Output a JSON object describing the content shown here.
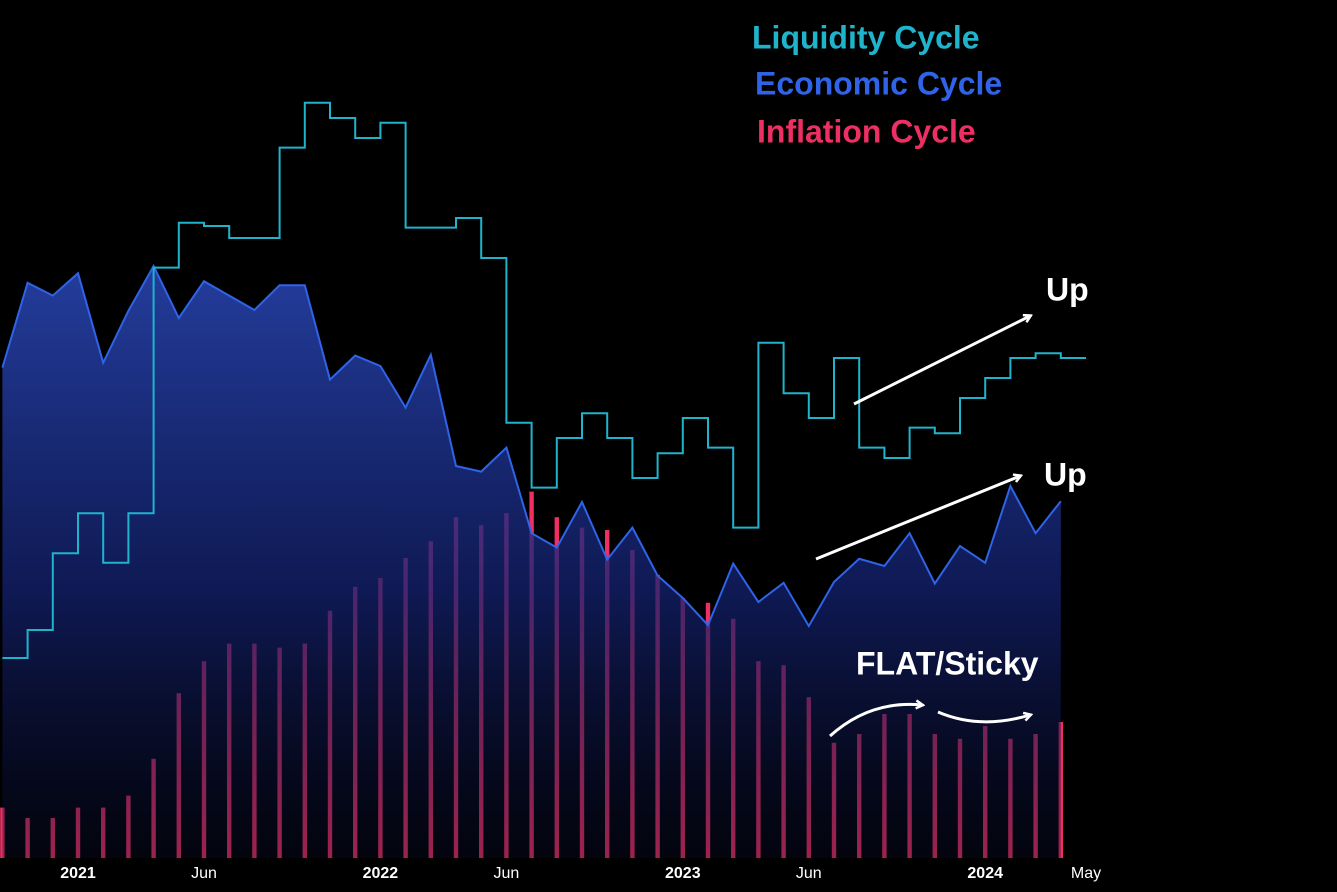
{
  "chart_data": {
    "type": "combo",
    "x": [
      "2020-10",
      "2020-11",
      "2020-12",
      "2021-01",
      "2021-02",
      "2021-03",
      "2021-04",
      "2021-05",
      "2021-06",
      "2021-07",
      "2021-08",
      "2021-09",
      "2021-10",
      "2021-11",
      "2021-12",
      "2022-01",
      "2022-02",
      "2022-03",
      "2022-04",
      "2022-05",
      "2022-06",
      "2022-07",
      "2022-08",
      "2022-09",
      "2022-10",
      "2022-11",
      "2022-12",
      "2023-01",
      "2023-02",
      "2023-03",
      "2023-04",
      "2023-05",
      "2023-06",
      "2023-07",
      "2023-08",
      "2023-09",
      "2023-10",
      "2023-11",
      "2023-12",
      "2024-01",
      "2024-02",
      "2024-03",
      "2024-04"
    ],
    "series": [
      {
        "name": "Liquidity Cycle",
        "type": "step-line",
        "color": "#1fb3cc",
        "values": [
          25,
          28.5,
          38.1,
          43.1,
          36.9,
          43.1,
          73.8,
          79.4,
          79,
          77.5,
          77.5,
          88.8,
          94.4,
          92.5,
          90,
          91.9,
          78.8,
          78.8,
          80,
          75,
          54.4,
          46.3,
          52.5,
          55.6,
          52.5,
          47.5,
          50.6,
          55,
          51.3,
          41.3,
          64.4,
          58.1,
          55,
          62.5,
          51.3,
          50,
          53.8,
          53.1,
          57.5,
          60,
          62.5,
          63.1,
          62.5
        ]
      },
      {
        "name": "Economic Cycle",
        "type": "area",
        "color": "#2f63e8",
        "values": [
          61.3,
          71.9,
          70.3,
          73.1,
          61.9,
          68.4,
          74,
          67.5,
          72.1,
          70.3,
          68.5,
          71.6,
          71.6,
          59.8,
          62.8,
          61.5,
          56.3,
          62.9,
          49,
          48.3,
          51.3,
          40.6,
          38.8,
          44.5,
          37.3,
          41.3,
          35.3,
          32.5,
          29.1,
          36.8,
          32,
          34.4,
          29,
          34.5,
          37.4,
          36.5,
          40.6,
          34.3,
          39,
          36.9,
          46.5,
          40.6,
          44.6
        ]
      },
      {
        "name": "Inflation Cycle",
        "type": "bar",
        "color": "#ee2f63",
        "values": [
          6.3,
          5,
          5,
          6.3,
          6.3,
          7.8,
          12.4,
          20.6,
          24.6,
          26.8,
          26.8,
          26.3,
          26.8,
          30.9,
          33.9,
          35,
          37.5,
          39.6,
          42.6,
          41.6,
          43.1,
          45.8,
          42.6,
          41.3,
          41,
          38.5,
          35.4,
          32.5,
          31.9,
          29.9,
          24.6,
          24.1,
          20.1,
          14.4,
          15.5,
          18,
          18,
          15.5,
          14.9,
          16.5,
          14.9,
          15.5,
          17
        ]
      }
    ],
    "ylim": [
      0,
      100
    ],
    "xticks": [
      {
        "value": "2021-01",
        "label": "2021"
      },
      {
        "value": "2021-06",
        "label": "Jun"
      },
      {
        "value": "2022-01",
        "label": "2022"
      },
      {
        "value": "2022-06",
        "label": "Jun"
      },
      {
        "value": "2023-01",
        "label": "2023"
      },
      {
        "value": "2023-06",
        "label": "Jun"
      },
      {
        "value": "2024-01",
        "label": "2024"
      },
      {
        "value": "2024-05",
        "label": "May"
      }
    ],
    "legend": "top-right",
    "annotations": [
      "Up",
      "Up",
      "FLAT/Sticky"
    ]
  }
}
